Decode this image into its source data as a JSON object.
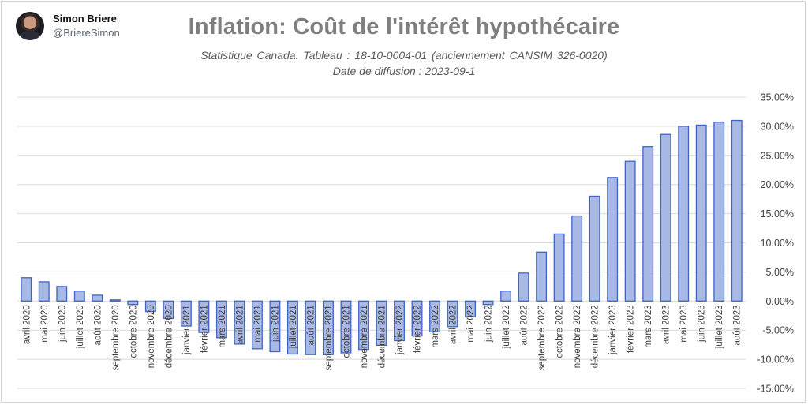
{
  "author": {
    "name": "Simon Briere",
    "handle": "@BriereSimon"
  },
  "colors": {
    "bar_fill": "#a9b9e6",
    "bar_stroke": "#3f63c7",
    "grid": "#d9d9d9"
  },
  "chart_data": {
    "type": "bar",
    "title": "Inflation: Coût de l'intérêt hypothécaire",
    "subtitle": "Statistique Canada. Tableau : 18-10-0004-01 (anciennement CANSIM 326-0020)",
    "subtitle2": "Date de diffusion : 2023-09-1",
    "xlabel": "",
    "ylabel": "",
    "ylim": [
      -15,
      35
    ],
    "ytick_step": 5,
    "y_axis_position": "right",
    "grid": true,
    "y_tick_labels": [
      "-15.00%",
      "-10.00%",
      "-5.00%",
      "0.00%",
      "5.00%",
      "10.00%",
      "15.00%",
      "20.00%",
      "25.00%",
      "30.00%",
      "35.00%"
    ],
    "categories": [
      "avril 2020",
      "mai 2020",
      "juin 2020",
      "juillet 2020",
      "août 2020",
      "septembre 2020",
      "octobre 2020",
      "novembre 2020",
      "décembre 2020",
      "janvier 2021",
      "février 2021",
      "mars 2021",
      "avril 2021",
      "mai 2021",
      "juin 2021",
      "juillet 2021",
      "août 2021",
      "septembre 2021",
      "octobre 2021",
      "novembre 2021",
      "décembre 2021",
      "janvier 2022",
      "février 2022",
      "mars 2022",
      "avril 2022",
      "mai 2022",
      "juin 2022",
      "juillet 2022",
      "août 2022",
      "septembre 2022",
      "octobre 2022",
      "novembre 2022",
      "décembre 2022",
      "janvier 2023",
      "février 2023",
      "mars 2023",
      "avril 2023",
      "mai 2023",
      "juin 2023",
      "juillet 2023",
      "août 2023"
    ],
    "values": [
      4.0,
      3.3,
      2.5,
      1.7,
      1.0,
      0.2,
      -0.6,
      -1.8,
      -3.0,
      -4.3,
      -5.4,
      -6.3,
      -7.4,
      -8.2,
      -8.7,
      -9.1,
      -9.2,
      -9.2,
      -8.9,
      -8.3,
      -7.6,
      -6.8,
      -6.0,
      -5.3,
      -4.4,
      -2.7,
      -0.6,
      1.7,
      4.8,
      8.4,
      11.5,
      14.6,
      18.0,
      21.2,
      24.0,
      26.5,
      28.6,
      30.0,
      30.2,
      30.7,
      31.0
    ]
  }
}
